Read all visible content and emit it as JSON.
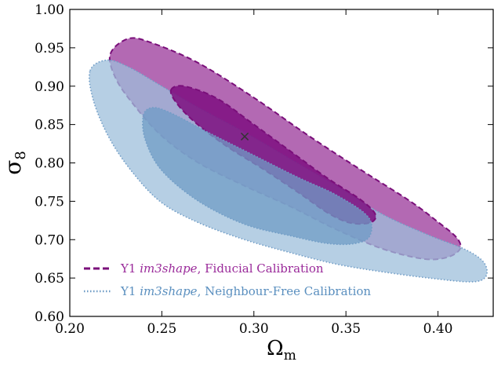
{
  "chart_data": {
    "type": "contour",
    "xlabel": "Ω",
    "xlabel_sub": "m",
    "ylabel": "σ",
    "ylabel_sub": "8",
    "xlim": [
      0.2,
      0.43
    ],
    "ylim": [
      0.6,
      1.0
    ],
    "xticks": [
      0.2,
      0.25,
      0.3,
      0.35,
      0.4
    ],
    "xtick_labels": [
      "0.20",
      "0.25",
      "0.30",
      "0.35",
      "0.40"
    ],
    "yticks": [
      0.6,
      0.65,
      0.7,
      0.75,
      0.8,
      0.85,
      0.9,
      0.95,
      1.0
    ],
    "ytick_labels": [
      "0.60",
      "0.65",
      "0.70",
      "0.75",
      "0.80",
      "0.85",
      "0.90",
      "0.95",
      "1.00"
    ],
    "grid": false,
    "legend_position": "bottom-left",
    "marker": {
      "symbol": "×",
      "x": 0.295,
      "y": 0.835
    },
    "series": [
      {
        "name_prefix": "Y1 ",
        "name_italic": "im3shape",
        "name_suffix": ", Fiducial Calibration",
        "line_style": "dashed",
        "line_color": "#7a0f7a",
        "fill_outer": "#a64fa6",
        "fill_inner": "#7e0f80",
        "contours": [
          {
            "level": "95%",
            "points": [
              [
                0.222,
                0.942
              ],
              [
                0.232,
                0.962
              ],
              [
                0.245,
                0.956
              ],
              [
                0.27,
                0.93
              ],
              [
                0.3,
                0.885
              ],
              [
                0.33,
                0.835
              ],
              [
                0.36,
                0.788
              ],
              [
                0.385,
                0.75
              ],
              [
                0.4,
                0.723
              ],
              [
                0.41,
                0.703
              ],
              [
                0.412,
                0.688
              ],
              [
                0.405,
                0.677
              ],
              [
                0.392,
                0.675
              ],
              [
                0.37,
                0.688
              ],
              [
                0.345,
                0.713
              ],
              [
                0.32,
                0.743
              ],
              [
                0.295,
                0.77
              ],
              [
                0.27,
                0.8
              ],
              [
                0.25,
                0.835
              ],
              [
                0.235,
                0.875
              ],
              [
                0.225,
                0.91
              ]
            ]
          },
          {
            "level": "68%",
            "points": [
              [
                0.255,
                0.895
              ],
              [
                0.262,
                0.9
              ],
              [
                0.28,
                0.884
              ],
              [
                0.3,
                0.85
              ],
              [
                0.32,
                0.815
              ],
              [
                0.34,
                0.78
              ],
              [
                0.358,
                0.752
              ],
              [
                0.366,
                0.733
              ],
              [
                0.363,
                0.722
              ],
              [
                0.352,
                0.722
              ],
              [
                0.34,
                0.735
              ],
              [
                0.325,
                0.76
              ],
              [
                0.305,
                0.792
              ],
              [
                0.285,
                0.822
              ],
              [
                0.268,
                0.853
              ],
              [
                0.258,
                0.878
              ]
            ]
          }
        ]
      },
      {
        "name_prefix": "Y1 ",
        "name_italic": "im3shape",
        "name_suffix": ", Neighbour-Free Calibration",
        "line_style": "dotted",
        "line_color": "#6f9cc6",
        "fill_outer": "#9dbfdb",
        "fill_inner": "#6f9cc6",
        "contours": [
          {
            "level": "95%",
            "points": [
              [
                0.211,
                0.92
              ],
              [
                0.22,
                0.934
              ],
              [
                0.232,
                0.925
              ],
              [
                0.25,
                0.9
              ],
              [
                0.27,
                0.872
              ],
              [
                0.295,
                0.84
              ],
              [
                0.32,
                0.805
              ],
              [
                0.345,
                0.77
              ],
              [
                0.37,
                0.733
              ],
              [
                0.395,
                0.706
              ],
              [
                0.415,
                0.687
              ],
              [
                0.425,
                0.67
              ],
              [
                0.426,
                0.652
              ],
              [
                0.418,
                0.645
              ],
              [
                0.395,
                0.65
              ],
              [
                0.37,
                0.658
              ],
              [
                0.345,
                0.668
              ],
              [
                0.32,
                0.683
              ],
              [
                0.295,
                0.7
              ],
              [
                0.27,
                0.722
              ],
              [
                0.25,
                0.748
              ],
              [
                0.235,
                0.785
              ],
              [
                0.222,
                0.83
              ],
              [
                0.213,
                0.88
              ]
            ]
          },
          {
            "level": "68%",
            "points": [
              [
                0.24,
                0.862
              ],
              [
                0.245,
                0.872
              ],
              [
                0.255,
                0.865
              ],
              [
                0.275,
                0.84
              ],
              [
                0.3,
                0.81
              ],
              [
                0.325,
                0.78
              ],
              [
                0.345,
                0.758
              ],
              [
                0.362,
                0.73
              ],
              [
                0.363,
                0.705
              ],
              [
                0.355,
                0.695
              ],
              [
                0.34,
                0.695
              ],
              [
                0.32,
                0.705
              ],
              [
                0.295,
                0.72
              ],
              [
                0.27,
                0.75
              ],
              [
                0.25,
                0.79
              ],
              [
                0.241,
                0.83
              ]
            ]
          }
        ]
      }
    ]
  }
}
